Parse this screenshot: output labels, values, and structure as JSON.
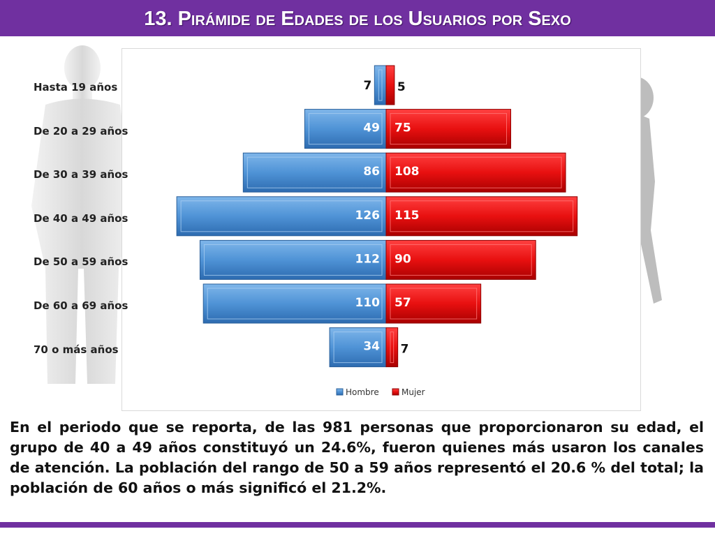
{
  "header": {
    "title": "13. Pirámide de Edades de los Usuarios por Sexo"
  },
  "chart_data": {
    "type": "bar",
    "orientation": "horizontal",
    "categories": [
      "Hasta 19 años",
      "De 20 a 29 años",
      "De 30 a 39 años",
      "De 40 a 49 años",
      "De 50 a 59 años",
      "De 60 a 69 años",
      "70 o más años"
    ],
    "series": [
      {
        "name": "Hombre",
        "values": [
          7,
          49,
          86,
          126,
          112,
          110,
          34
        ],
        "color": "#4f93d6"
      },
      {
        "name": "Mujer",
        "values": [
          5,
          75,
          108,
          115,
          90,
          57,
          7
        ],
        "color": "#e81010"
      }
    ],
    "legend": "bottom"
  },
  "paragraph": "En el periodo que se reporta, de las 981 personas que proporcionaron su edad, el grupo de 40 a 49 años constituyó un 24.6%, fueron quienes más usaron los canales de atención. La población del rango de 50 a 59 años representó el 20.6 % del total; la población de 60 años o más significó el 21.2%."
}
